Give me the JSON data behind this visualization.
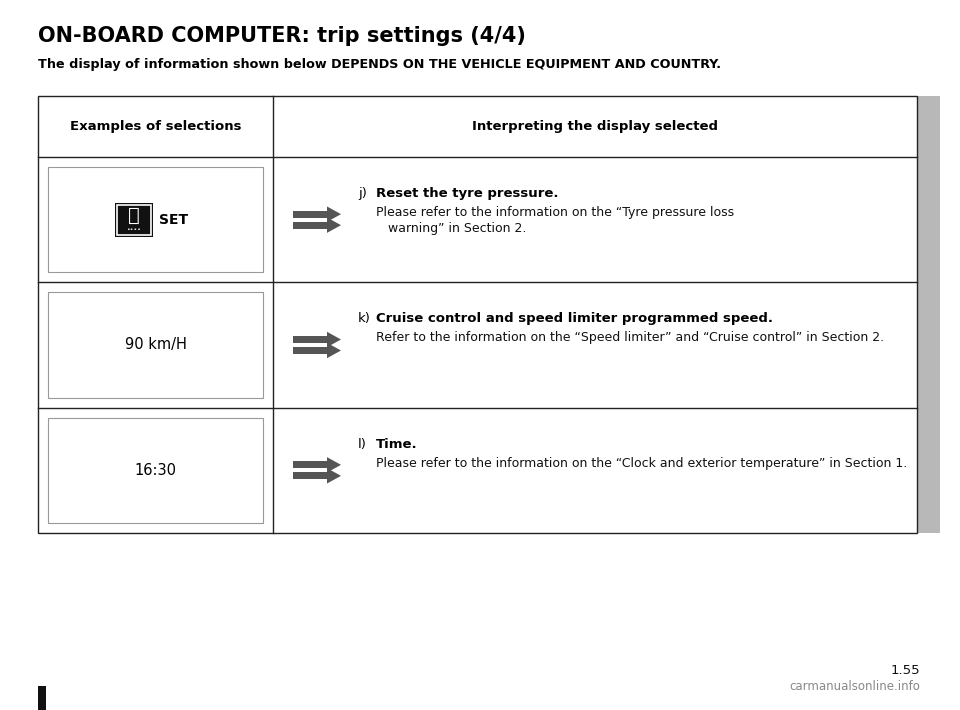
{
  "title": "ON-BOARD COMPUTER: trip settings (4/4)",
  "subtitle": "The display of information shown below DEPENDS ON THE VEHICLE EQUIPMENT AND COUNTRY.",
  "col1_header": "Examples of selections",
  "col2_header": "Interpreting the display selected",
  "bg_color": "#ffffff",
  "page_number": "1.55",
  "watermark": "carmanualsonline.info",
  "rows": [
    {
      "left_label": "SET",
      "left_has_icon": true,
      "key_letter": "j)",
      "key_bold": "Reset the tyre pressure.",
      "key_text1": "Please refer to the information on the “Tyre pressure loss",
      "key_text2": "   warning” in Section 2."
    },
    {
      "left_label": "90 km/H",
      "left_has_icon": false,
      "key_letter": "k)",
      "key_bold": "Cruise control and speed limiter programmed speed.",
      "key_text1": "Refer to the information on the “Speed limiter” and “Cruise control” in Section 2.",
      "key_text2": ""
    },
    {
      "left_label": "16:30",
      "left_has_icon": false,
      "key_letter": "l)",
      "key_bold": "Time.",
      "key_text1": "Please refer to the information on the “Clock and exterior temperature” in Section 1.",
      "key_text2": ""
    }
  ]
}
